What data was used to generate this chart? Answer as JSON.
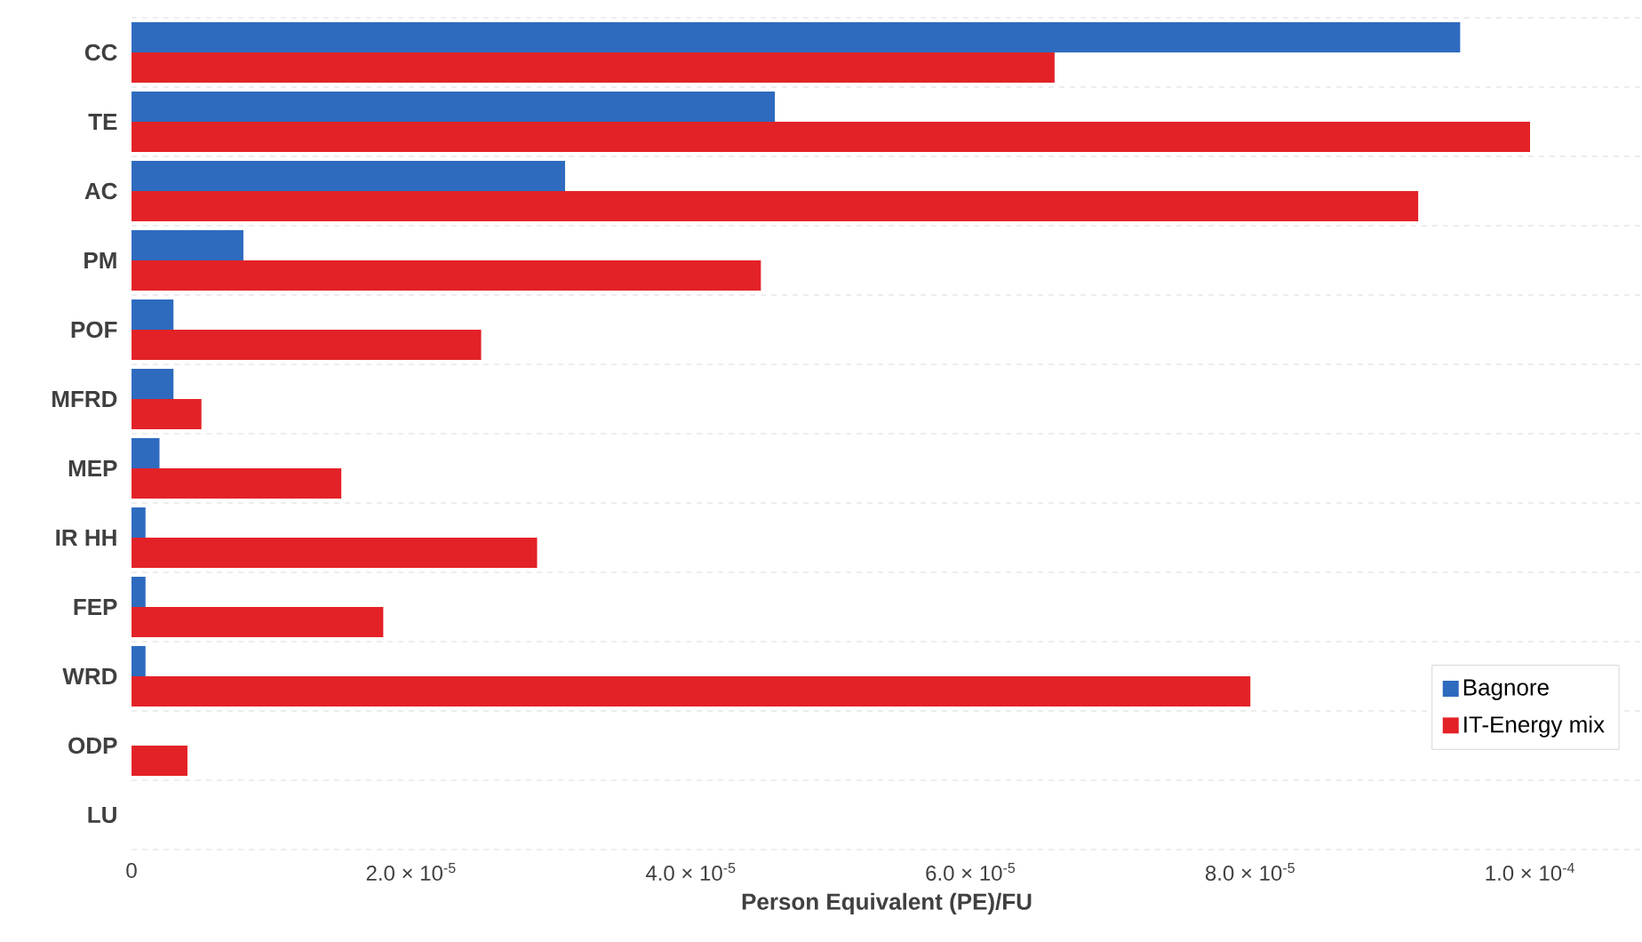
{
  "chart_data": {
    "type": "bar",
    "orientation": "horizontal",
    "xlabel": "Person Equivalent (PE)/FU",
    "categories": [
      "CC",
      "TE",
      "AC",
      "PM",
      "POF",
      "MFRD",
      "MEP",
      "IR HH",
      "FEP",
      "WRD",
      "ODP",
      "LU"
    ],
    "series": [
      {
        "name": "Bagnore",
        "color": "#2e6bbf",
        "values": [
          9.5e-05,
          4.6e-05,
          3.1e-05,
          8e-06,
          3e-06,
          3e-06,
          2e-06,
          1e-06,
          1e-06,
          1e-06,
          0,
          null
        ]
      },
      {
        "name": "IT-Energy mix",
        "color": "#e32227",
        "values": [
          6.6e-05,
          0.0001,
          9.2e-05,
          4.5e-05,
          2.5e-05,
          5e-06,
          1.5e-05,
          2.9e-05,
          1.8e-05,
          8e-05,
          4e-06,
          0
        ]
      }
    ],
    "xlim": [
      0,
      0.000108
    ],
    "xticks": [
      0,
      {
        "value": 2e-05,
        "label": "2.0 × 10$^{-5}$"
      },
      {
        "value": 4e-05,
        "label": "4.0 × 10$^{-5}$"
      },
      {
        "value": 6e-05,
        "label": "6.0 × 10$^{-5}$"
      },
      {
        "value": 8e-05,
        "label": "8.0 × 10$^{-5}$"
      },
      {
        "value": 0.0001,
        "label": "1.0 × 10$^{-4}$"
      }
    ],
    "grid": "y",
    "legend": "bottom right"
  }
}
